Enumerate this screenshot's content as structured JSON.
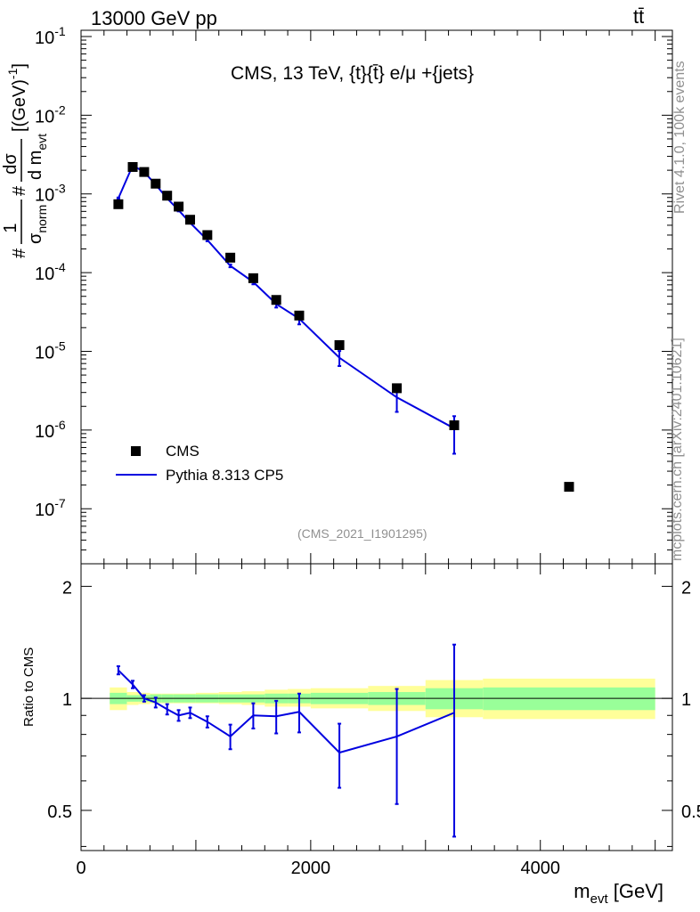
{
  "header": {
    "energy_label": "13000 GeV pp",
    "process_label": "tt̄"
  },
  "side_text": {
    "rivet": "Rivet 4.1.0,  100k events",
    "source": "mcplots.cern.ch [arXiv:2401.10621]"
  },
  "chart_data": [
    {
      "type": "scatter",
      "panel": "main",
      "title": "CMS, 13 TeV, {t}{t̄} e/μ +{jets}",
      "analysis_id": "(CMS_2021_I1901295)",
      "ylabel": "# 1/σ_norm # dσ/d m_evt [(GeV)^-1]",
      "yscale": "log",
      "ylim": [
        2e-08,
        0.12
      ],
      "xlim": [
        0,
        5150
      ],
      "y_tick_labels": [
        "10^-7",
        "10^-6",
        "10^-5",
        "10^-4",
        "10^-3",
        "10^-2",
        "10^-1"
      ],
      "legend": {
        "position": "bottom-left",
        "entries": [
          {
            "name": "CMS",
            "style": "black-square"
          },
          {
            "name": "Pythia 8.313 CP5",
            "style": "blue-line"
          }
        ]
      },
      "series": [
        {
          "name": "CMS",
          "color": "#000000",
          "x": [
            325,
            450,
            550,
            650,
            750,
            850,
            950,
            1100,
            1300,
            1500,
            1700,
            1900,
            2250,
            2750,
            3250,
            4250
          ],
          "y": [
            0.00074,
            0.0022,
            0.0019,
            0.00135,
            0.00095,
            0.00069,
            0.00047,
            0.0003,
            0.000155,
            8.5e-05,
            4.5e-05,
            2.85e-05,
            1.2e-05,
            3.4e-06,
            1.15e-06,
            1.9e-07
          ]
        },
        {
          "name": "Pythia 8.313 CP5",
          "color": "#0000e0",
          "x": [
            325,
            450,
            550,
            650,
            750,
            850,
            950,
            1100,
            1300,
            1500,
            1700,
            1900,
            2250,
            2750,
            3250
          ],
          "y": [
            0.00088,
            0.0023,
            0.0019,
            0.00131,
            0.00088,
            0.00062,
            0.00043,
            0.00026,
            0.000122,
            7.6e-05,
            4e-05,
            2.6e-05,
            8.3e-06,
            2.6e-06,
            1.05e-06
          ],
          "yerr_low": [
            2e-05,
            5e-05,
            4e-05,
            3e-05,
            2e-05,
            2e-05,
            1e-05,
            1e-05,
            5e-06,
            5e-06,
            4e-06,
            4e-06,
            1.8e-06,
            9e-07,
            5.5e-07
          ],
          "yerr_high": [
            2e-05,
            5e-05,
            4e-05,
            3e-05,
            2e-05,
            2e-05,
            1e-05,
            1e-05,
            5e-06,
            5e-06,
            4e-06,
            4e-06,
            1.8e-06,
            9e-07,
            4.5e-07
          ]
        }
      ]
    },
    {
      "type": "line",
      "panel": "ratio",
      "ylabel": "Ratio to CMS",
      "xlabel": "m_evt [GeV]",
      "yscale": "log",
      "ylim": [
        0.39,
        2.3
      ],
      "xlim": [
        0,
        5150
      ],
      "y_ticks": [
        0.5,
        1,
        2
      ],
      "y_tick_labels": [
        "0.5",
        "1",
        "2"
      ],
      "x_ticks": [
        0,
        2000,
        4000
      ],
      "x_tick_labels": [
        "0",
        "2000",
        "4000"
      ],
      "reference_line": 1,
      "bands": {
        "edges": [
          250,
          400,
          500,
          600,
          700,
          800,
          900,
          1000,
          1200,
          1400,
          1600,
          1800,
          2000,
          2500,
          3000,
          3500,
          5000
        ],
        "green_low": [
          0.965,
          0.98,
          0.98,
          0.975,
          0.975,
          0.975,
          0.975,
          0.975,
          0.975,
          0.975,
          0.97,
          0.97,
          0.965,
          0.96,
          0.935,
          0.93
        ],
        "green_high": [
          1.035,
          1.02,
          1.02,
          1.025,
          1.025,
          1.025,
          1.025,
          1.025,
          1.025,
          1.025,
          1.03,
          1.03,
          1.035,
          1.04,
          1.065,
          1.07
        ],
        "yellow_low": [
          0.93,
          0.96,
          0.965,
          0.97,
          0.97,
          0.97,
          0.97,
          0.97,
          0.965,
          0.96,
          0.95,
          0.95,
          0.94,
          0.925,
          0.89,
          0.88
        ],
        "yellow_high": [
          1.07,
          1.04,
          1.035,
          1.03,
          1.03,
          1.03,
          1.03,
          1.035,
          1.04,
          1.045,
          1.055,
          1.06,
          1.065,
          1.08,
          1.12,
          1.13
        ],
        "green_color": "#99ff99",
        "yellow_color": "#ffff99"
      },
      "series": [
        {
          "name": "Pythia 8.313 CP5 / CMS",
          "color": "#0000e0",
          "x": [
            325,
            450,
            550,
            650,
            750,
            850,
            950,
            1100,
            1300,
            1500,
            1700,
            1900,
            2250,
            2750,
            3250
          ],
          "y": [
            1.19,
            1.09,
            1.0,
            0.975,
            0.935,
            0.9,
            0.915,
            0.865,
            0.79,
            0.9,
            0.895,
            0.92,
            0.715,
            0.79,
            0.915
          ],
          "yerr_low": [
            0.03,
            0.025,
            0.02,
            0.03,
            0.03,
            0.03,
            0.03,
            0.03,
            0.06,
            0.07,
            0.09,
            0.11,
            0.14,
            0.27,
            0.49
          ],
          "yerr_high": [
            0.03,
            0.025,
            0.02,
            0.03,
            0.03,
            0.03,
            0.03,
            0.03,
            0.06,
            0.07,
            0.09,
            0.11,
            0.14,
            0.27,
            0.48
          ]
        }
      ]
    }
  ]
}
